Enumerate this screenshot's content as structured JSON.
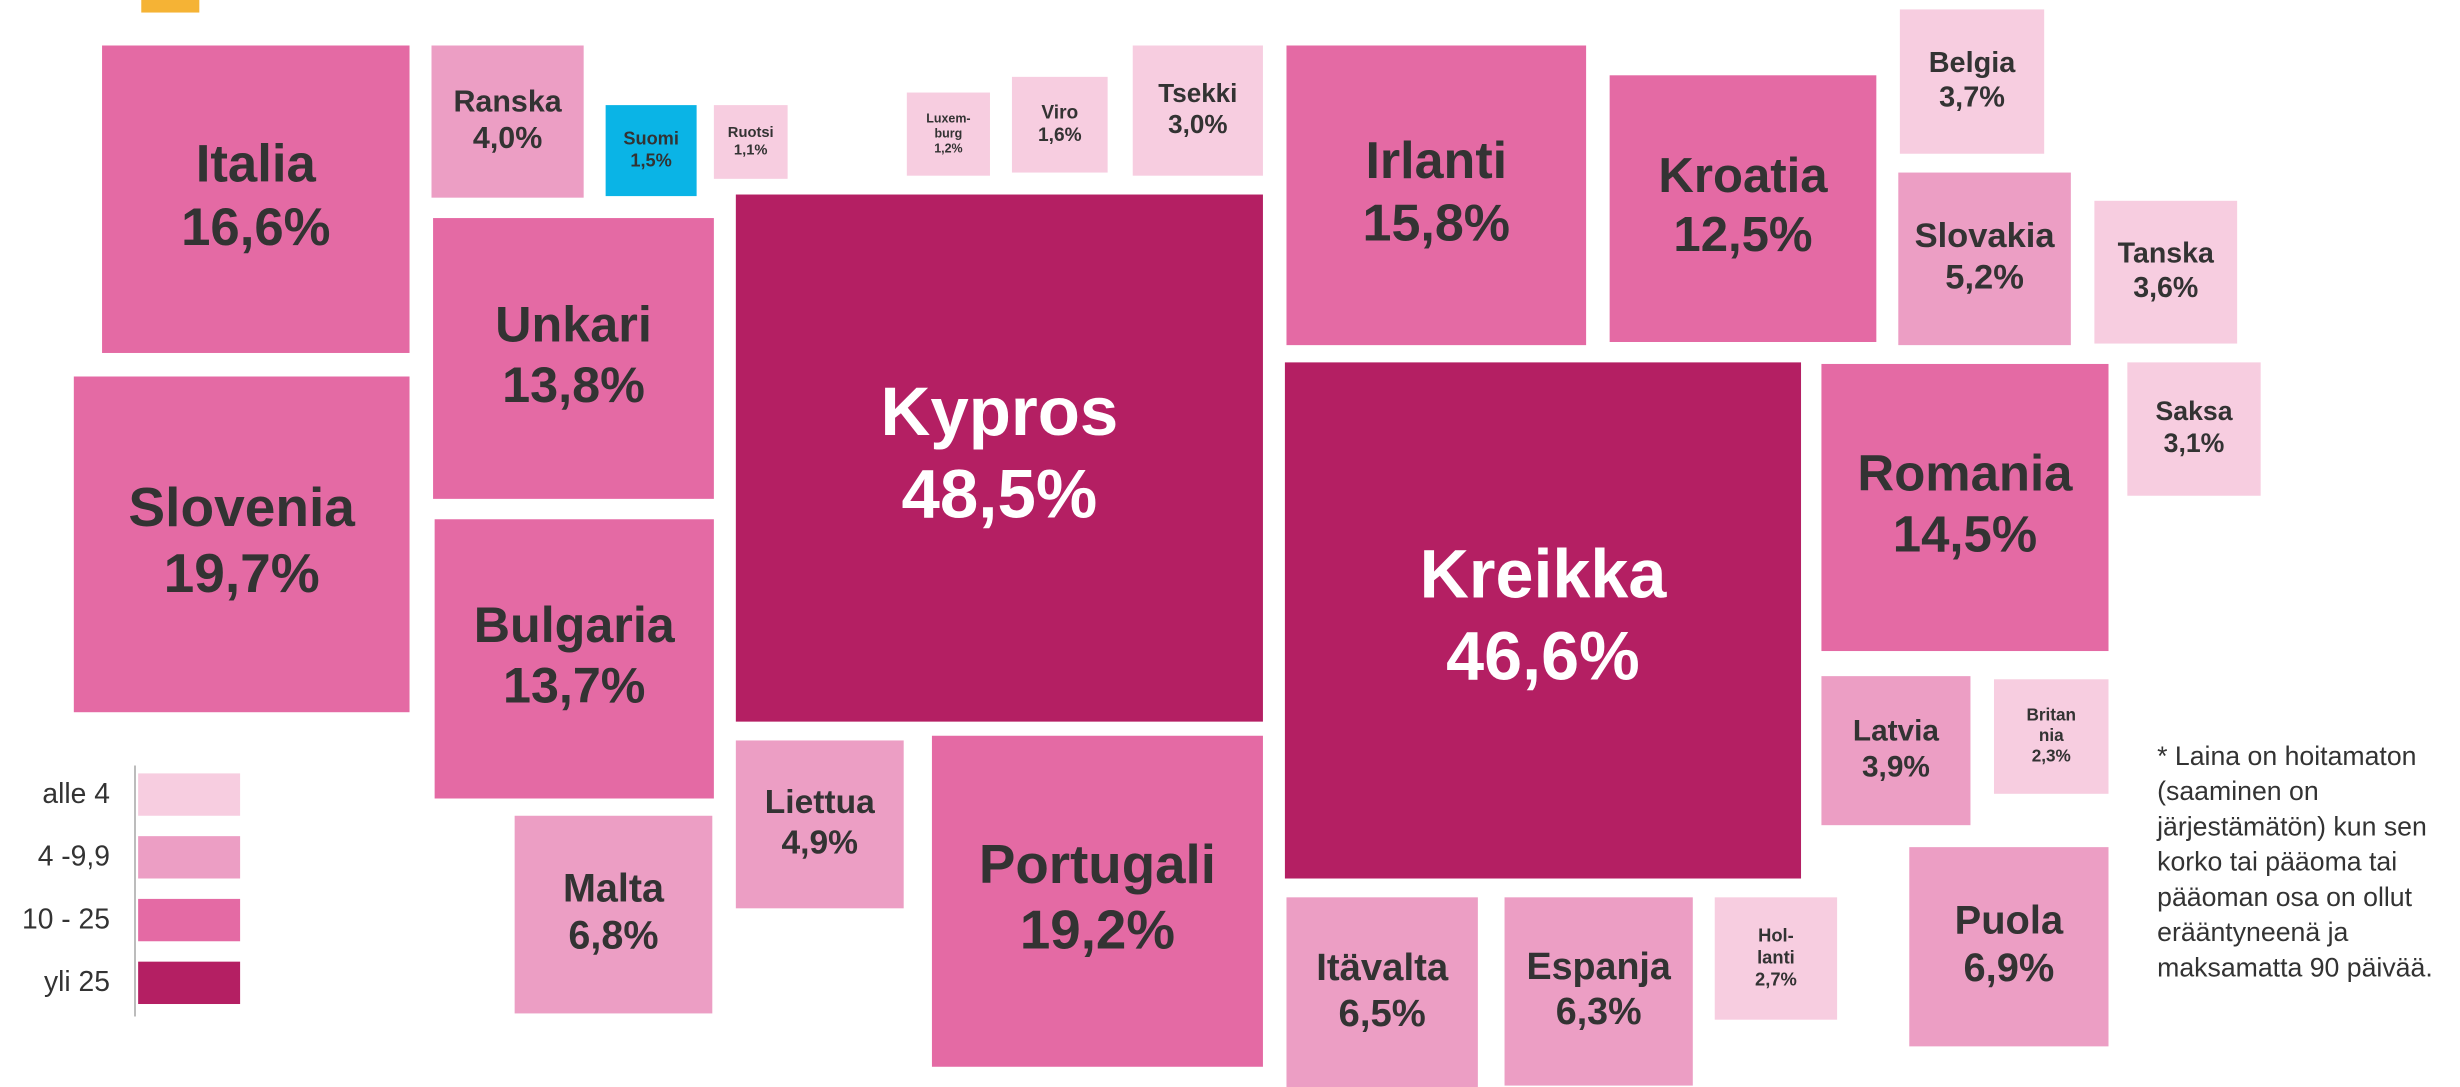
{
  "chart_data": {
    "type": "tile_map",
    "categories": [
      [
        "Italia"
      ],
      [
        "Slovenia"
      ],
      [
        "Ranska"
      ],
      [
        "Suomi"
      ],
      [
        "Ruotsi"
      ],
      [
        "Unkari"
      ],
      [
        "Bulgaria"
      ],
      [
        "Malta"
      ],
      [
        "Luxem-",
        "burg"
      ],
      [
        "Viro"
      ],
      [
        "Tsekki"
      ],
      [
        "Kypros"
      ],
      [
        "Liettua"
      ],
      [
        "Portugali"
      ],
      [
        "Irlanti"
      ],
      [
        "Kroatia"
      ],
      [
        "Belgia"
      ],
      [
        "Slovakia"
      ],
      [
        "Tanska"
      ],
      [
        "Saksa"
      ],
      [
        "Kreikka"
      ],
      [
        "Romania"
      ],
      [
        "Latvia"
      ],
      [
        "Britan",
        "nia"
      ],
      [
        "Puola"
      ],
      [
        "Itävalta"
      ],
      [
        "Espanja"
      ],
      [
        "Hol-",
        "lanti"
      ]
    ],
    "values": [
      16.6,
      19.7,
      4.0,
      1.5,
      1.1,
      13.8,
      13.7,
      6.8,
      1.2,
      1.6,
      3.0,
      48.5,
      4.9,
      19.2,
      15.8,
      12.5,
      3.7,
      5.2,
      3.6,
      3.1,
      46.6,
      14.5,
      3.9,
      2.3,
      6.9,
      6.5,
      6.3,
      2.7
    ],
    "value_labels": [
      "16,6%",
      "19,7%",
      "4,0%",
      "1,5%",
      "1,1%",
      "13,8%",
      "13,7%",
      "6,8%",
      "1,2%",
      "1,6%",
      "3,0%",
      "48,5%",
      "4,9%",
      "19,2%",
      "15,8%",
      "12,5%",
      "3,7%",
      "5,2%",
      "3,6%",
      "3,1%",
      "46,6%",
      "14,5%",
      "3,9%",
      "2,3%",
      "6,9%",
      "6,5%",
      "6,3%",
      "2,7%"
    ],
    "colors": [
      "#e46aa4",
      "#e46aa4",
      "#ec9ec4",
      "#0ab4e6",
      "#f7cde0",
      "#e46aa4",
      "#e46aa4",
      "#ec9ec4",
      "#f7cde0",
      "#f7cde0",
      "#f7cde0",
      "#b41f63",
      "#ec9ec4",
      "#e46aa4",
      "#e46aa4",
      "#e46aa4",
      "#f7cde0",
      "#ec9ec4",
      "#f7cde0",
      "#f7cde0",
      "#b41f63",
      "#e46aa4",
      "#ec9ec4",
      "#f7cde0",
      "#ec9ec4",
      "#ec9ec4",
      "#ec9ec4",
      "#f7cde0"
    ],
    "legend": {
      "labels": [
        "alle 4",
        "4 -9,9",
        "10 - 25",
        "yli 25"
      ],
      "colors": [
        "#f7cde0",
        "#ec9ec4",
        "#e46aa4",
        "#b41f63"
      ]
    },
    "note": [
      "* Laina on hoitamaton",
      "(saaminen on",
      "järjestämätön) kun sen",
      "korko tai pääoma tai",
      "pääoman osa on ollut",
      "erääntyneenä ja",
      "maksamatta 90 päivää."
    ]
  }
}
